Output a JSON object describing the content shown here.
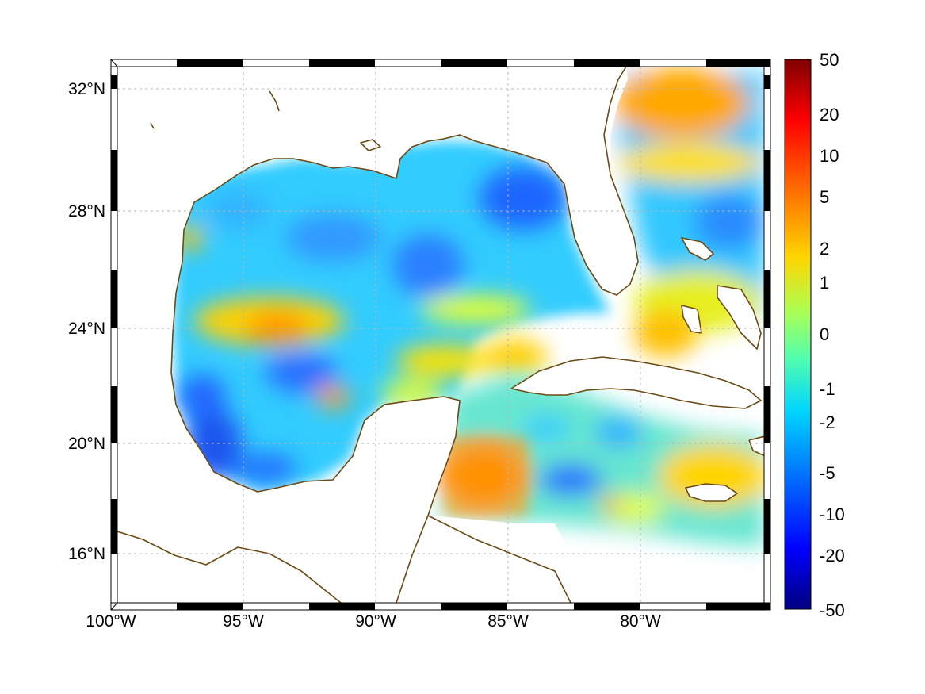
{
  "map": {
    "lon_labels": [
      "100°W",
      "95°W",
      "90°W",
      "85°W",
      "80°W"
    ],
    "lat_labels": [
      "32°N",
      "28°N",
      "24°N",
      "20°N",
      "16°N"
    ],
    "lon_range": [
      -100,
      -75
    ],
    "lat_range": [
      14.2,
      32.9
    ],
    "grid": true,
    "coastline_color": "#6b4a14",
    "frame_colors": [
      "#000000",
      "#ffffff"
    ]
  },
  "colorbar": {
    "tick_labels": [
      "50",
      "20",
      "10",
      "5",
      "2",
      "1",
      "0",
      "-1",
      "-2",
      "-5",
      "-10",
      "-20",
      "-50"
    ],
    "colormap": "jet",
    "colors": [
      "#800000",
      "#ff0000",
      "#ff8000",
      "#ffd500",
      "#aaff55",
      "#55ffaa",
      "#00d5ff",
      "#0080ff",
      "#0000ff",
      "#000080"
    ]
  }
}
